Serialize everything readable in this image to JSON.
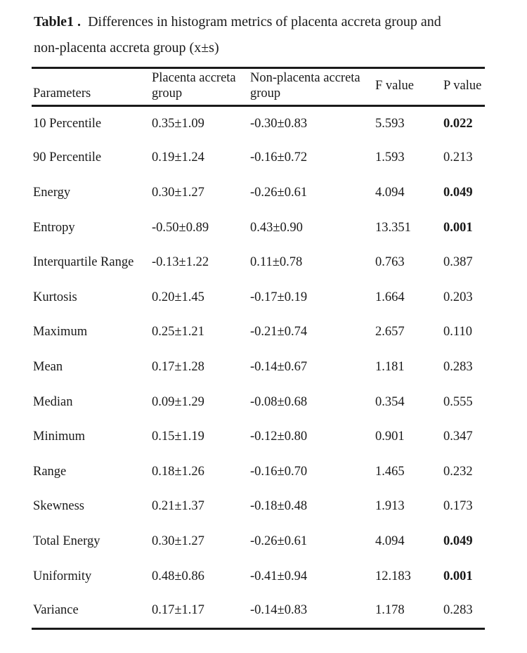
{
  "caption": {
    "label": "Table1 .",
    "line1": "Differences in histogram metrics of placenta accreta group and",
    "line2": "non-placenta accreta group (x±s)"
  },
  "table": {
    "headers": [
      "Parameters",
      "Placenta accreta group",
      "Non-placenta accreta group",
      "F value",
      "P value"
    ],
    "rows": [
      {
        "parameter": "10 Percentile",
        "placenta": "0.35±1.09",
        "non_placenta": "-0.30±0.83",
        "f_value": "5.593",
        "p_value": "0.022",
        "p_bold": true
      },
      {
        "parameter": "90 Percentile",
        "placenta": "0.19±1.24",
        "non_placenta": "-0.16±0.72",
        "f_value": "1.593",
        "p_value": "0.213",
        "p_bold": false
      },
      {
        "parameter": "Energy",
        "placenta": "0.30±1.27",
        "non_placenta": "-0.26±0.61",
        "f_value": "4.094",
        "p_value": "0.049",
        "p_bold": true
      },
      {
        "parameter": "Entropy",
        "placenta": "-0.50±0.89",
        "non_placenta": "0.43±0.90",
        "f_value": "13.351",
        "p_value": "0.001",
        "p_bold": true
      },
      {
        "parameter": "Interquartile Range",
        "placenta": "-0.13±1.22",
        "non_placenta": "0.11±0.78",
        "f_value": "0.763",
        "p_value": "0.387",
        "p_bold": false
      },
      {
        "parameter": "Kurtosis",
        "placenta": "0.20±1.45",
        "non_placenta": "-0.17±0.19",
        "f_value": "1.664",
        "p_value": "0.203",
        "p_bold": false
      },
      {
        "parameter": "Maximum",
        "placenta": "0.25±1.21",
        "non_placenta": "-0.21±0.74",
        "f_value": "2.657",
        "p_value": "0.110",
        "p_bold": false
      },
      {
        "parameter": "Mean",
        "placenta": "0.17±1.28",
        "non_placenta": "-0.14±0.67",
        "f_value": "1.181",
        "p_value": "0.283",
        "p_bold": false
      },
      {
        "parameter": "Median",
        "placenta": "0.09±1.29",
        "non_placenta": "-0.08±0.68",
        "f_value": "0.354",
        "p_value": "0.555",
        "p_bold": false
      },
      {
        "parameter": "Minimum",
        "placenta": "0.15±1.19",
        "non_placenta": "-0.12±0.80",
        "f_value": "0.901",
        "p_value": "0.347",
        "p_bold": false
      },
      {
        "parameter": "Range",
        "placenta": "0.18±1.26",
        "non_placenta": "-0.16±0.70",
        "f_value": "1.465",
        "p_value": "0.232",
        "p_bold": false
      },
      {
        "parameter": "Skewness",
        "placenta": "0.21±1.37",
        "non_placenta": "-0.18±0.48",
        "f_value": "1.913",
        "p_value": "0.173",
        "p_bold": false
      },
      {
        "parameter": "Total Energy",
        "placenta": "0.30±1.27",
        "non_placenta": "-0.26±0.61",
        "f_value": "4.094",
        "p_value": "0.049",
        "p_bold": true
      },
      {
        "parameter": "Uniformity",
        "placenta": "0.48±0.86",
        "non_placenta": "-0.41±0.94",
        "f_value": "12.183",
        "p_value": "0.001",
        "p_bold": true
      },
      {
        "parameter": "Variance",
        "placenta": "0.17±1.17",
        "non_placenta": "-0.14±0.83",
        "f_value": "1.178",
        "p_value": "0.283",
        "p_bold": false
      }
    ]
  },
  "colors": {
    "text": "#1a1a1a",
    "rule": "#1a1a1a",
    "background": "#ffffff"
  }
}
